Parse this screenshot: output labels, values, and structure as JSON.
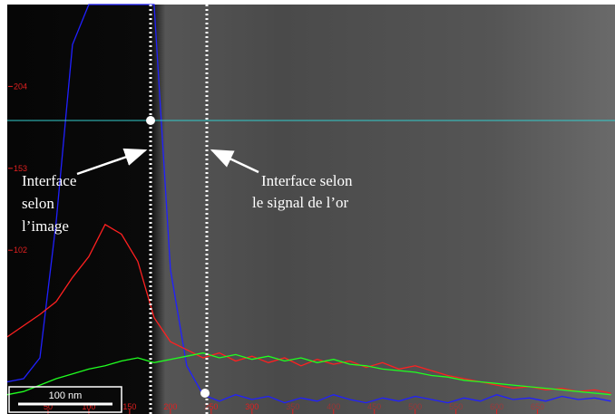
{
  "chart_data": {
    "type": "line",
    "x": [
      0,
      20,
      40,
      60,
      80,
      100,
      120,
      140,
      160,
      180,
      200,
      220,
      240,
      260,
      280,
      300,
      320,
      340,
      360,
      380,
      400,
      420,
      440,
      460,
      480,
      500,
      520,
      540,
      560,
      580,
      600,
      620,
      640,
      660,
      680,
      700,
      720,
      740
    ],
    "series": [
      {
        "color": "#2020ff",
        "values": [
          20,
          22,
          35,
          120,
          230,
          255,
          255,
          255,
          255,
          255,
          90,
          30,
          12,
          8,
          12,
          9,
          11,
          7,
          10,
          8,
          12,
          9,
          7,
          10,
          8,
          11,
          9,
          7,
          10,
          8,
          12,
          9,
          10,
          8,
          11,
          9,
          10,
          8
        ]
      },
      {
        "color": "#ff2020",
        "values": [
          48,
          55,
          62,
          70,
          85,
          98,
          118,
          112,
          95,
          60,
          45,
          40,
          35,
          38,
          33,
          36,
          32,
          35,
          30,
          34,
          31,
          33,
          29,
          32,
          28,
          30,
          27,
          24,
          22,
          20,
          18,
          16,
          17,
          15,
          16,
          14,
          15,
          13
        ]
      },
      {
        "color": "#20ff20",
        "values": [
          12,
          14,
          18,
          22,
          25,
          28,
          30,
          33,
          35,
          32,
          34,
          36,
          38,
          35,
          37,
          34,
          36,
          33,
          35,
          32,
          34,
          31,
          30,
          28,
          27,
          26,
          24,
          23,
          21,
          20,
          19,
          18,
          17,
          16,
          15,
          14,
          13,
          12
        ]
      }
    ],
    "xlim": [
      0,
      745
    ],
    "ylim": [
      0,
      255
    ],
    "xticks": [
      50,
      100,
      150,
      200,
      250,
      300,
      350,
      400,
      450,
      500,
      550,
      600,
      650
    ],
    "yticks": [
      102,
      153,
      204
    ],
    "scale_bar": "100 nm",
    "annotations": [
      [
        "Interface",
        "selon",
        "l’image"
      ],
      [
        "Interface selon",
        "le signal de l’or"
      ]
    ]
  }
}
